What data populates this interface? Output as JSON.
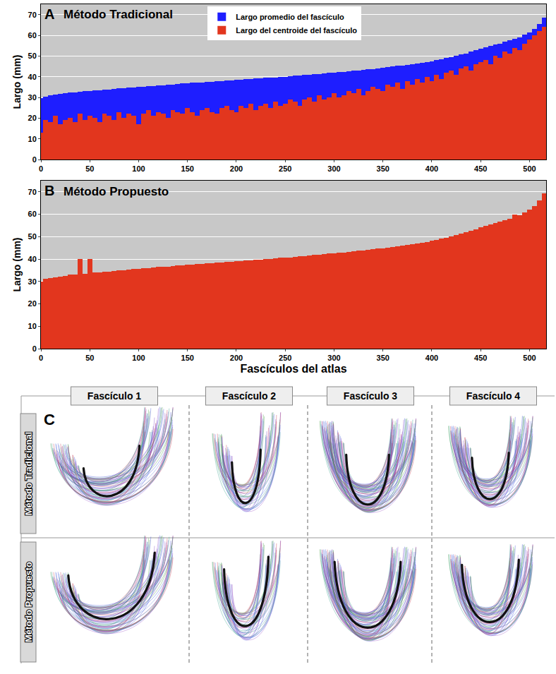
{
  "chart_data": [
    {
      "type": "bar",
      "panel_label": "A",
      "title": "Método Tradicional",
      "y_label": "Largo (mm)",
      "x": [
        0,
        5,
        10,
        15,
        20,
        25,
        30,
        35,
        40,
        45,
        50,
        55,
        60,
        65,
        70,
        75,
        80,
        85,
        90,
        95,
        100,
        105,
        110,
        115,
        120,
        125,
        130,
        135,
        140,
        145,
        150,
        155,
        160,
        165,
        170,
        175,
        180,
        185,
        190,
        195,
        200,
        205,
        210,
        215,
        220,
        225,
        230,
        235,
        240,
        245,
        250,
        255,
        260,
        265,
        270,
        275,
        280,
        285,
        290,
        295,
        300,
        305,
        310,
        315,
        320,
        325,
        330,
        335,
        340,
        345,
        350,
        355,
        360,
        365,
        370,
        375,
        380,
        385,
        390,
        395,
        400,
        405,
        410,
        415,
        420,
        425,
        430,
        435,
        440,
        445,
        450,
        455,
        460,
        465,
        470,
        475,
        480,
        485,
        490,
        495,
        500,
        505,
        510,
        515
      ],
      "series": [
        {
          "name": "Largo promedio del fascículo",
          "color": "#1e1eff",
          "values": [
            29.5,
            30.5,
            31.0,
            31.3,
            31.6,
            32.0,
            32.3,
            32.5,
            32.7,
            32.9,
            33.1,
            33.3,
            33.5,
            33.7,
            33.9,
            34.1,
            34.3,
            34.5,
            34.7,
            34.9,
            35.0,
            35.2,
            35.4,
            35.6,
            35.8,
            35.9,
            36.1,
            36.3,
            36.5,
            36.7,
            36.8,
            37.0,
            37.2,
            37.3,
            37.5,
            37.6,
            37.8,
            37.9,
            38.1,
            38.3,
            38.4,
            38.6,
            38.8,
            38.9,
            39.1,
            39.2,
            39.4,
            39.5,
            39.7,
            39.9,
            40.0,
            40.2,
            40.4,
            40.6,
            40.8,
            41.0,
            41.2,
            41.4,
            41.6,
            41.8,
            42.0,
            42.2,
            42.4,
            42.6,
            42.9,
            43.1,
            43.3,
            43.5,
            43.8,
            44.0,
            44.3,
            44.6,
            44.9,
            45.2,
            45.5,
            45.8,
            46.1,
            46.4,
            46.8,
            47.1,
            47.5,
            48.0,
            48.5,
            49.0,
            49.5,
            50.1,
            50.7,
            51.3,
            52.0,
            52.7,
            53.5,
            54.3,
            55.0,
            55.5,
            56.0,
            56.8,
            57.5,
            58.2,
            59.0,
            60.2,
            61.5,
            63.0,
            65.5,
            68.5
          ]
        },
        {
          "name": "Largo del centroide del fascículo",
          "color": "#e2361e",
          "values": [
            13,
            19,
            18,
            21,
            17,
            19,
            20,
            18,
            22,
            19,
            21,
            20,
            18,
            22,
            21,
            19,
            23,
            20,
            22,
            21,
            17,
            22,
            24,
            21,
            23,
            22,
            20,
            24,
            23,
            22,
            25,
            23,
            21,
            24,
            25,
            23,
            22,
            25,
            26,
            24,
            23,
            26,
            25,
            27,
            24,
            26,
            27,
            25,
            28,
            26,
            27,
            29,
            28,
            26,
            29,
            30,
            28,
            31,
            29,
            30,
            32,
            30,
            31,
            33,
            32,
            34,
            31,
            33,
            35,
            34,
            33,
            36,
            35,
            37,
            34,
            38,
            36,
            39,
            37,
            40,
            38,
            41,
            39,
            42,
            43,
            41,
            44,
            45,
            43,
            46,
            47,
            48,
            46,
            50,
            49,
            52,
            51,
            54,
            53,
            56,
            58,
            60,
            62,
            64
          ]
        }
      ],
      "xlim": [
        0,
        517
      ],
      "xticks": [
        0,
        50,
        100,
        150,
        200,
        250,
        300,
        350,
        400,
        450,
        500
      ],
      "ylim": [
        0,
        75
      ],
      "yticks": [
        0,
        10,
        20,
        30,
        40,
        50,
        60,
        70
      ],
      "grid": true,
      "legend": "top"
    },
    {
      "type": "bar",
      "panel_label": "B",
      "title": "Método Propuesto",
      "y_label": "Largo (mm)",
      "x_label": "Fascículos del atlas",
      "x": [
        0,
        5,
        10,
        15,
        20,
        25,
        30,
        35,
        40,
        45,
        50,
        55,
        60,
        65,
        70,
        75,
        80,
        85,
        90,
        95,
        100,
        105,
        110,
        115,
        120,
        125,
        130,
        135,
        140,
        145,
        150,
        155,
        160,
        165,
        170,
        175,
        180,
        185,
        190,
        195,
        200,
        205,
        210,
        215,
        220,
        225,
        230,
        235,
        240,
        245,
        250,
        255,
        260,
        265,
        270,
        275,
        280,
        285,
        290,
        295,
        300,
        305,
        310,
        315,
        320,
        325,
        330,
        335,
        340,
        345,
        350,
        355,
        360,
        365,
        370,
        375,
        380,
        385,
        390,
        395,
        400,
        405,
        410,
        415,
        420,
        425,
        430,
        435,
        440,
        445,
        450,
        455,
        460,
        465,
        470,
        475,
        480,
        485,
        490,
        495,
        500,
        505,
        510,
        515
      ],
      "series": [
        {
          "name": "Largo promedio del fascículo",
          "color": "#1e1eff",
          "values": [
            29.5,
            30.5,
            31.0,
            31.3,
            31.6,
            32.0,
            32.3,
            32.5,
            32.7,
            32.9,
            33.1,
            33.3,
            33.5,
            33.7,
            33.9,
            34.1,
            34.3,
            34.5,
            34.7,
            34.9,
            35.0,
            35.2,
            35.4,
            35.6,
            35.8,
            35.9,
            36.1,
            36.3,
            36.5,
            36.7,
            36.8,
            37.0,
            37.2,
            37.3,
            37.5,
            37.6,
            37.8,
            37.9,
            38.1,
            38.3,
            38.4,
            38.6,
            38.8,
            38.9,
            39.1,
            39.2,
            39.4,
            39.5,
            39.7,
            39.9,
            40.0,
            40.2,
            40.4,
            40.6,
            40.8,
            41.0,
            41.2,
            41.4,
            41.6,
            41.8,
            42.0,
            42.2,
            42.4,
            42.6,
            42.9,
            43.1,
            43.3,
            43.5,
            43.8,
            44.0,
            44.3,
            44.6,
            44.9,
            45.2,
            45.5,
            45.8,
            46.1,
            46.4,
            46.8,
            47.1,
            47.5,
            48.0,
            48.5,
            49.0,
            49.5,
            50.1,
            50.7,
            51.3,
            52.0,
            52.7,
            53.5,
            54.3,
            55.0,
            55.5,
            56.0,
            56.8,
            57.5,
            58.2,
            59.0,
            60.2,
            61.5,
            63.0,
            65.5,
            68.5
          ]
        },
        {
          "name": "Largo del centroide del fascículo",
          "color": "#e2361e",
          "values": [
            30.0,
            31.2,
            31.6,
            31.9,
            32.2,
            32.6,
            33.0,
            33.2,
            40.0,
            33.5,
            40.0,
            33.9,
            34.1,
            34.3,
            34.5,
            34.8,
            34.9,
            35.1,
            35.3,
            35.5,
            35.6,
            35.8,
            36.0,
            36.2,
            36.4,
            36.5,
            36.7,
            36.9,
            37.1,
            37.3,
            37.4,
            37.6,
            37.8,
            37.9,
            38.1,
            38.2,
            38.4,
            38.5,
            38.7,
            38.9,
            39.0,
            39.2,
            39.4,
            39.5,
            39.7,
            39.8,
            40.0,
            40.1,
            40.3,
            40.5,
            40.6,
            40.8,
            41.0,
            41.2,
            41.4,
            41.6,
            41.8,
            42.0,
            42.2,
            42.4,
            42.6,
            42.8,
            43.0,
            43.2,
            43.5,
            43.7,
            43.9,
            44.1,
            44.4,
            44.6,
            44.9,
            45.2,
            45.5,
            45.8,
            46.1,
            46.4,
            46.7,
            47.0,
            47.4,
            47.7,
            48.1,
            48.6,
            49.1,
            49.6,
            50.1,
            50.7,
            51.3,
            51.9,
            52.6,
            53.3,
            54.1,
            54.9,
            55.6,
            56.1,
            56.6,
            57.4,
            58.1,
            60.0,
            59.6,
            60.8,
            62.1,
            63.6,
            66.1,
            69.2
          ]
        }
      ],
      "xlim": [
        0,
        517
      ],
      "xticks": [
        0,
        50,
        100,
        150,
        200,
        250,
        300,
        350,
        400,
        450,
        500
      ],
      "ylim": [
        0,
        75
      ],
      "yticks": [
        0,
        10,
        20,
        30,
        40,
        50,
        60,
        70
      ],
      "grid": true,
      "legend": false
    }
  ],
  "panel_c": {
    "label": "C",
    "columns": [
      "Fascículo 1",
      "Fascículo 2",
      "Fascículo 3",
      "Fascículo 4"
    ],
    "rows": [
      "Método Tradicional",
      "Método Propuesto"
    ]
  }
}
